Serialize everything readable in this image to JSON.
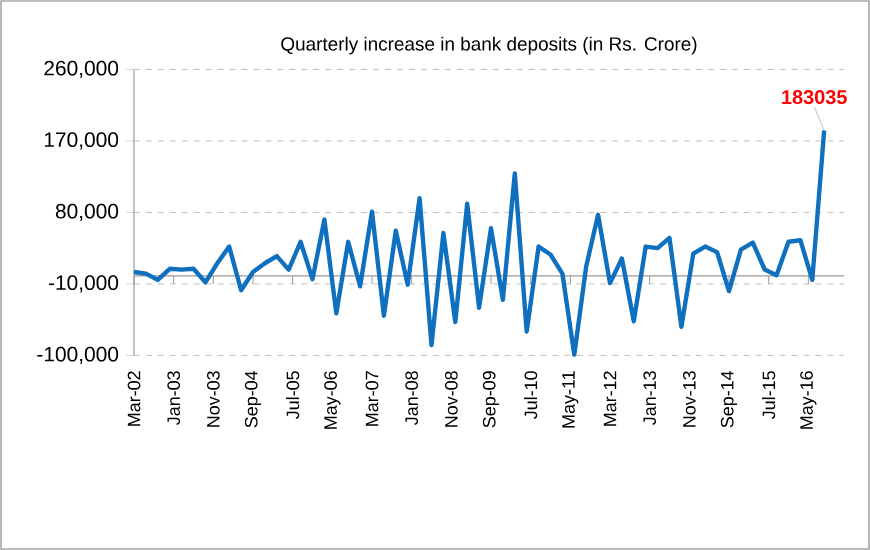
{
  "chart_data": {
    "type": "line",
    "title": "Quarterly increase in bank deposits (in Rs. Crore)",
    "x": [
      "2002-03",
      "2002-06",
      "2002-09",
      "2002-12",
      "2003-03",
      "2003-06",
      "2003-09",
      "2003-12",
      "2004-03",
      "2004-06",
      "2004-09",
      "2004-12",
      "2005-03",
      "2005-06",
      "2005-09",
      "2005-12",
      "2006-03",
      "2006-06",
      "2006-09",
      "2006-12",
      "2007-03",
      "2007-06",
      "2007-09",
      "2007-12",
      "2008-03",
      "2008-06",
      "2008-09",
      "2008-12",
      "2009-03",
      "2009-06",
      "2009-09",
      "2009-12",
      "2010-03",
      "2010-06",
      "2010-09",
      "2010-12",
      "2011-03",
      "2011-06",
      "2011-09",
      "2011-12",
      "2012-03",
      "2012-06",
      "2012-09",
      "2012-12",
      "2013-03",
      "2013-06",
      "2013-09",
      "2013-12",
      "2014-03",
      "2014-06",
      "2014-09",
      "2014-12",
      "2015-03",
      "2015-06",
      "2015-09",
      "2015-12",
      "2016-03",
      "2016-06",
      "2016-09"
    ],
    "values": [
      5000,
      3000,
      -5000,
      9000,
      8000,
      9000,
      -8000,
      16000,
      37000,
      -18000,
      5000,
      16000,
      25000,
      8000,
      43000,
      -4000,
      71000,
      -47000,
      43000,
      -13000,
      81000,
      -50000,
      57000,
      -11000,
      98000,
      -87000,
      54000,
      -58000,
      91000,
      -40000,
      60000,
      -30000,
      129000,
      -70000,
      37000,
      27000,
      3000,
      -99000,
      12000,
      77000,
      -9000,
      22000,
      -57000,
      37000,
      35000,
      48000,
      -64000,
      28000,
      37000,
      30000,
      -19000,
      33000,
      42000,
      8000,
      1000,
      43000,
      45000,
      -5000,
      183035
    ],
    "color": "#0f70bf",
    "xlim": [
      "2002-03",
      "2017-02"
    ],
    "xticks": [
      {
        "value": "2002-03",
        "label": "Mar-02"
      },
      {
        "value": "2003-01",
        "label": "Jan-03"
      },
      {
        "value": "2003-11",
        "label": "Nov-03"
      },
      {
        "value": "2004-09",
        "label": "Sep-04"
      },
      {
        "value": "2005-07",
        "label": "Jul-05"
      },
      {
        "value": "2006-05",
        "label": "May-06"
      },
      {
        "value": "2007-03",
        "label": "Mar-07"
      },
      {
        "value": "2008-01",
        "label": "Jan-08"
      },
      {
        "value": "2008-11",
        "label": "Nov-08"
      },
      {
        "value": "2009-09",
        "label": "Sep-09"
      },
      {
        "value": "2010-07",
        "label": "Jul-10"
      },
      {
        "value": "2011-05",
        "label": "May-11"
      },
      {
        "value": "2012-03",
        "label": "Mar-12"
      },
      {
        "value": "2013-01",
        "label": "Jan-13"
      },
      {
        "value": "2013-11",
        "label": "Nov-13"
      },
      {
        "value": "2014-09",
        "label": "Sep-14"
      },
      {
        "value": "2015-07",
        "label": "Jul-15"
      },
      {
        "value": "2016-05",
        "label": "May-16"
      }
    ],
    "ylim": [
      -100000,
      260000
    ],
    "yticks": [
      {
        "value": -100000,
        "label": "-100,000"
      },
      {
        "value": -10000,
        "label": "-10,000"
      },
      {
        "value": 80000,
        "label": "80,000"
      },
      {
        "value": 170000,
        "label": "170,000"
      },
      {
        "value": 260000,
        "label": "260,000"
      }
    ],
    "grid": "y",
    "line_style": "solid",
    "annotations": [
      {
        "text": "183035",
        "x": "2016-09",
        "y": 183035
      }
    ]
  }
}
